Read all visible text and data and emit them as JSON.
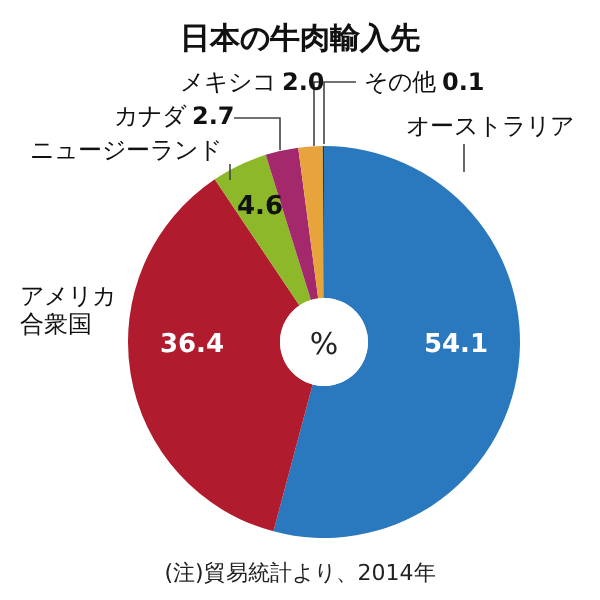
{
  "chart_data": {
    "type": "donut",
    "title": "日本の牛肉輸入先",
    "categories": [
      "オーストラリア",
      "アメリカ合衆国",
      "ニュージーランド",
      "カナダ",
      "メキシコ",
      "その他"
    ],
    "values": [
      54.1,
      36.4,
      4.6,
      2.7,
      2.0,
      0.1
    ],
    "value_labels": [
      "54.1",
      "36.4",
      "4.6",
      "2.7",
      "2.0",
      "0.1"
    ],
    "colors": [
      "#2a78bd",
      "#b01c2e",
      "#8cb82a",
      "#a3286c",
      "#e8a43c",
      "#4a3020"
    ],
    "annotations": [
      "%",
      "(注)貿易統計より、2014年"
    ]
  }
}
